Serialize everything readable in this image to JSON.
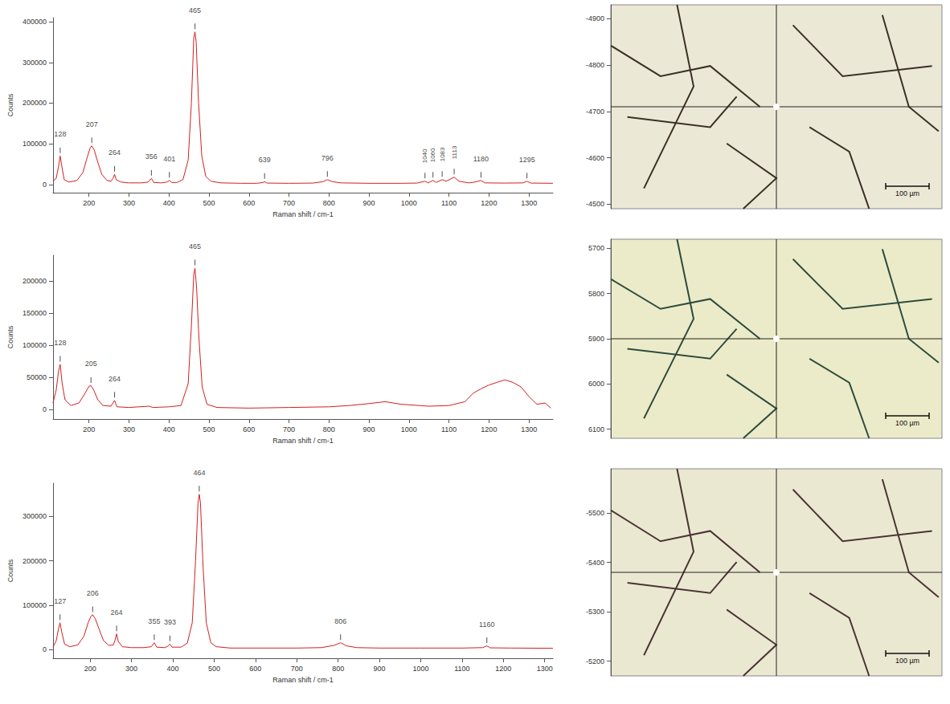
{
  "chart_data": [
    {
      "type": "line",
      "x_label": "Raman shift / cm-1",
      "y_label": "Counts",
      "color": "#d41f1f",
      "grid": false,
      "xlim": [
        110,
        1360
      ],
      "xticks": [
        200,
        300,
        400,
        500,
        600,
        700,
        800,
        900,
        1000,
        1100,
        1200,
        1300
      ],
      "ylim": [
        -20000,
        410000
      ],
      "yticks": [
        0,
        100000,
        200000,
        300000,
        400000
      ],
      "x": [
        110,
        118,
        124,
        128,
        132,
        138,
        150,
        170,
        185,
        195,
        203,
        207,
        213,
        222,
        232,
        245,
        255,
        260,
        264,
        268,
        280,
        300,
        330,
        348,
        356,
        362,
        380,
        395,
        401,
        407,
        420,
        435,
        448,
        456,
        462,
        465,
        468,
        474,
        482,
        492,
        505,
        530,
        580,
        620,
        635,
        639,
        645,
        700,
        760,
        785,
        796,
        808,
        830,
        900,
        980,
        1020,
        1040,
        1048,
        1060,
        1068,
        1083,
        1093,
        1113,
        1125,
        1150,
        1165,
        1180,
        1190,
        1240,
        1285,
        1295,
        1305,
        1360
      ],
      "values": [
        8000,
        15000,
        45000,
        70000,
        45000,
        12000,
        6000,
        10000,
        30000,
        65000,
        90000,
        95000,
        85000,
        55000,
        25000,
        10000,
        8000,
        15000,
        25000,
        12000,
        6000,
        4000,
        4000,
        6000,
        15000,
        5000,
        4000,
        6000,
        10000,
        5000,
        5000,
        12000,
        60000,
        200000,
        360000,
        375000,
        350000,
        200000,
        70000,
        20000,
        8000,
        4000,
        3000,
        3000,
        5000,
        7000,
        3500,
        3000,
        3500,
        7000,
        12000,
        7000,
        4000,
        3000,
        3000,
        3500,
        8000,
        4000,
        10000,
        5000,
        12000,
        8000,
        18000,
        8000,
        4000,
        6000,
        10000,
        4000,
        3500,
        4000,
        8000,
        3500,
        3000
      ],
      "peaks": [
        {
          "x": 128,
          "y": 70000
        },
        {
          "x": 207,
          "y": 95000
        },
        {
          "x": 264,
          "y": 25000
        },
        {
          "x": 356,
          "y": 15000
        },
        {
          "x": 401,
          "y": 10000
        },
        {
          "x": 465,
          "y": 375000
        },
        {
          "x": 639,
          "y": 7000
        },
        {
          "x": 796,
          "y": 12000
        },
        {
          "x": 1040,
          "y": 8000
        },
        {
          "x": 1060,
          "y": 10000
        },
        {
          "x": 1083,
          "y": 12000
        },
        {
          "x": 1113,
          "y": 18000
        },
        {
          "x": 1180,
          "y": 10000
        },
        {
          "x": 1295,
          "y": 8000
        }
      ]
    },
    {
      "type": "line",
      "x_label": "Raman shift / cm-1",
      "y_label": "Counts",
      "color": "#d41f1f",
      "grid": false,
      "xlim": [
        110,
        1360
      ],
      "xticks": [
        200,
        300,
        400,
        500,
        600,
        700,
        800,
        900,
        1000,
        1100,
        1200,
        1300
      ],
      "ylim": [
        -15000,
        240000
      ],
      "yticks": [
        0,
        50000,
        100000,
        150000,
        200000
      ],
      "x": [
        110,
        118,
        124,
        128,
        133,
        140,
        155,
        175,
        190,
        200,
        205,
        212,
        222,
        235,
        255,
        264,
        270,
        300,
        350,
        360,
        400,
        430,
        448,
        456,
        462,
        465,
        469,
        475,
        483,
        495,
        520,
        600,
        700,
        800,
        850,
        900,
        940,
        980,
        1050,
        1100,
        1140,
        1160,
        1180,
        1200,
        1220,
        1240,
        1260,
        1280,
        1300,
        1320,
        1340,
        1355
      ],
      "values": [
        10000,
        30000,
        60000,
        70000,
        40000,
        15000,
        6000,
        10000,
        25000,
        36000,
        37000,
        30000,
        15000,
        6000,
        5000,
        14000,
        4000,
        3000,
        5000,
        3000,
        4000,
        6000,
        40000,
        130000,
        210000,
        220000,
        190000,
        110000,
        35000,
        8000,
        3000,
        2000,
        3000,
        4000,
        6000,
        9000,
        12000,
        8000,
        5000,
        6000,
        12000,
        25000,
        32000,
        38000,
        42000,
        46000,
        42000,
        35000,
        20000,
        8000,
        10000,
        2000
      ],
      "peaks": [
        {
          "x": 128,
          "y": 70000
        },
        {
          "x": 205,
          "y": 37000
        },
        {
          "x": 264,
          "y": 14000
        },
        {
          "x": 465,
          "y": 220000
        }
      ]
    },
    {
      "type": "line",
      "x_label": "Raman shift / cm-1",
      "y_label": "Counts",
      "color": "#d41f1f",
      "grid": false,
      "xlim": [
        110,
        1320
      ],
      "xticks": [
        200,
        300,
        400,
        500,
        600,
        700,
        800,
        900,
        1000,
        1100,
        1200,
        1300
      ],
      "ylim": [
        -20000,
        375000
      ],
      "yticks": [
        0,
        100000,
        200000,
        300000
      ],
      "x": [
        110,
        118,
        123,
        127,
        131,
        138,
        150,
        170,
        185,
        195,
        202,
        206,
        212,
        222,
        232,
        245,
        256,
        260,
        264,
        268,
        278,
        300,
        330,
        348,
        355,
        361,
        380,
        388,
        393,
        398,
        420,
        435,
        447,
        455,
        461,
        464,
        467,
        473,
        481,
        492,
        505,
        540,
        600,
        700,
        760,
        790,
        806,
        820,
        845,
        900,
        1000,
        1100,
        1150,
        1160,
        1168,
        1220,
        1320
      ],
      "values": [
        5000,
        20000,
        45000,
        60000,
        40000,
        12000,
        6000,
        10000,
        30000,
        60000,
        75000,
        78000,
        70000,
        45000,
        20000,
        9000,
        10000,
        20000,
        35000,
        18000,
        6000,
        4000,
        4000,
        6000,
        15000,
        5000,
        4000,
        7000,
        12000,
        5000,
        5000,
        14000,
        60000,
        200000,
        330000,
        350000,
        330000,
        190000,
        60000,
        15000,
        6000,
        3000,
        3000,
        3000,
        4000,
        9000,
        15000,
        8000,
        4000,
        3000,
        3000,
        3000,
        4000,
        8000,
        3500,
        3000,
        2500
      ],
      "peaks": [
        {
          "x": 127,
          "y": 60000
        },
        {
          "x": 206,
          "y": 78000
        },
        {
          "x": 264,
          "y": 35000
        },
        {
          "x": 355,
          "y": 15000
        },
        {
          "x": 393,
          "y": 12000
        },
        {
          "x": 464,
          "y": 350000
        },
        {
          "x": 806,
          "y": 15000
        },
        {
          "x": 1160,
          "y": 8000
        }
      ]
    }
  ],
  "micrographs": [
    {
      "ylim": [
        -4930,
        -4490
      ],
      "yticks": [
        -4900,
        -4800,
        -4700,
        -4600,
        -4500
      ],
      "scale_bar": "100 µm"
    },
    {
      "ylim": [
        5680,
        6120
      ],
      "yticks": [
        5700,
        5800,
        5900,
        6000,
        6100
      ],
      "scale_bar": "100 µm"
    },
    {
      "ylim": [
        -5590,
        -5170
      ],
      "yticks": [
        -5500,
        -5400,
        -5300,
        -5200
      ],
      "scale_bar": "100 µm"
    }
  ]
}
